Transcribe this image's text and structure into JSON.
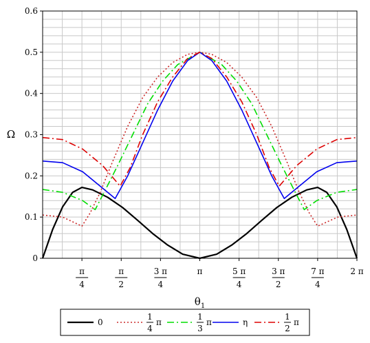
{
  "chart_data": {
    "type": "line",
    "title": "",
    "xlabel": "θ1",
    "ylabel": "Ω",
    "xlim": [
      0,
      6.283185
    ],
    "ylim": [
      0,
      0.6
    ],
    "grid": true,
    "legend_placement": "bottom",
    "y_ticks": [
      {
        "value": 0,
        "label": "0"
      },
      {
        "value": 0.1,
        "label": "0.1"
      },
      {
        "value": 0.2,
        "label": "0.2"
      },
      {
        "value": 0.3,
        "label": "0.3"
      },
      {
        "value": 0.4,
        "label": "0.4"
      },
      {
        "value": 0.5,
        "label": "0.5"
      },
      {
        "value": 0.6,
        "label": "0.6"
      }
    ],
    "x_ticks": [
      {
        "value": 0.785398,
        "num": "π",
        "den": "4"
      },
      {
        "value": 1.570796,
        "num": "π",
        "den": "2"
      },
      {
        "value": 2.356194,
        "num": "3 π",
        "den": "4"
      },
      {
        "value": 3.141593,
        "label": "π"
      },
      {
        "value": 3.926991,
        "num": "5 π",
        "den": "4"
      },
      {
        "value": 4.712389,
        "num": "3 π",
        "den": "2"
      },
      {
        "value": 5.497787,
        "num": "7 π",
        "den": "4"
      },
      {
        "value": 6.283185,
        "label": "2 π"
      }
    ],
    "series": [
      {
        "legend_num": "",
        "legend_den": "",
        "legend_suffix": "0",
        "color": "#000000",
        "dash": "",
        "width": 2.2,
        "x": [
          0,
          0.2,
          0.4,
          0.6,
          0.785398,
          1.0,
          1.3,
          1.6,
          1.9,
          2.2,
          2.5,
          2.8,
          3.141593,
          3.48,
          3.78,
          4.08,
          4.38,
          4.68,
          4.98,
          5.28,
          5.497787,
          5.68,
          5.88,
          6.08,
          6.283185
        ],
        "y": [
          0,
          0.07,
          0.125,
          0.16,
          0.172,
          0.166,
          0.148,
          0.123,
          0.092,
          0.06,
          0.032,
          0.01,
          0,
          0.01,
          0.032,
          0.06,
          0.092,
          0.123,
          0.148,
          0.166,
          0.172,
          0.16,
          0.125,
          0.07,
          0
        ]
      },
      {
        "legend_num": "1",
        "legend_den": "4",
        "legend_suffix": "π",
        "color": "#cc2a2a",
        "dash": "2,3",
        "width": 1.6,
        "x": [
          0,
          0.4,
          0.785398,
          0.95,
          1.15,
          1.4,
          1.7,
          2.0,
          2.3,
          2.6,
          2.9,
          3.141593,
          3.38,
          3.68,
          3.98,
          4.28,
          4.58,
          4.88,
          5.13,
          5.33,
          5.497787,
          5.9,
          6.283185
        ],
        "y": [
          0.105,
          0.1,
          0.078,
          0.11,
          0.16,
          0.235,
          0.32,
          0.39,
          0.44,
          0.475,
          0.495,
          0.5,
          0.495,
          0.475,
          0.44,
          0.39,
          0.32,
          0.235,
          0.16,
          0.11,
          0.078,
          0.1,
          0.105
        ]
      },
      {
        "legend_num": "1",
        "legend_den": "3",
        "legend_suffix": "π",
        "color": "#00dd00",
        "dash": "10,4,2,4",
        "width": 1.6,
        "x": [
          0,
          0.4,
          0.8,
          1.05,
          1.25,
          1.5,
          1.8,
          2.1,
          2.4,
          2.7,
          3.141593,
          3.58,
          3.88,
          4.18,
          4.48,
          4.78,
          5.03,
          5.23,
          5.48,
          5.88,
          6.283185
        ],
        "y": [
          0.167,
          0.16,
          0.14,
          0.118,
          0.165,
          0.225,
          0.3,
          0.375,
          0.43,
          0.47,
          0.5,
          0.47,
          0.43,
          0.375,
          0.3,
          0.225,
          0.165,
          0.118,
          0.14,
          0.16,
          0.167
        ]
      },
      {
        "legend_num": "",
        "legend_den": "",
        "legend_suffix": "η",
        "color": "#0000ee",
        "dash": "",
        "width": 1.6,
        "x": [
          0,
          0.4,
          0.8,
          1.2,
          1.45,
          1.7,
          2.0,
          2.3,
          2.6,
          2.9,
          3.141593,
          3.38,
          3.68,
          3.98,
          4.28,
          4.58,
          4.83,
          5.08,
          5.48,
          5.88,
          6.283185
        ],
        "y": [
          0.236,
          0.232,
          0.21,
          0.17,
          0.145,
          0.2,
          0.28,
          0.36,
          0.43,
          0.48,
          0.5,
          0.48,
          0.43,
          0.36,
          0.28,
          0.2,
          0.145,
          0.17,
          0.21,
          0.232,
          0.236
        ]
      },
      {
        "legend_num": "1",
        "legend_den": "2",
        "legend_suffix": "π",
        "color": "#dd0000",
        "dash": "10,4,2,4",
        "width": 1.6,
        "x": [
          0,
          0.4,
          0.8,
          1.2,
          1.55,
          1.75,
          2.0,
          2.3,
          2.6,
          2.9,
          3.141593,
          3.38,
          3.68,
          3.98,
          4.28,
          4.53,
          4.73,
          5.08,
          5.48,
          5.88,
          6.283185
        ],
        "y": [
          0.293,
          0.288,
          0.265,
          0.225,
          0.175,
          0.22,
          0.3,
          0.38,
          0.44,
          0.485,
          0.5,
          0.485,
          0.44,
          0.38,
          0.3,
          0.22,
          0.175,
          0.225,
          0.265,
          0.288,
          0.293
        ]
      }
    ]
  }
}
